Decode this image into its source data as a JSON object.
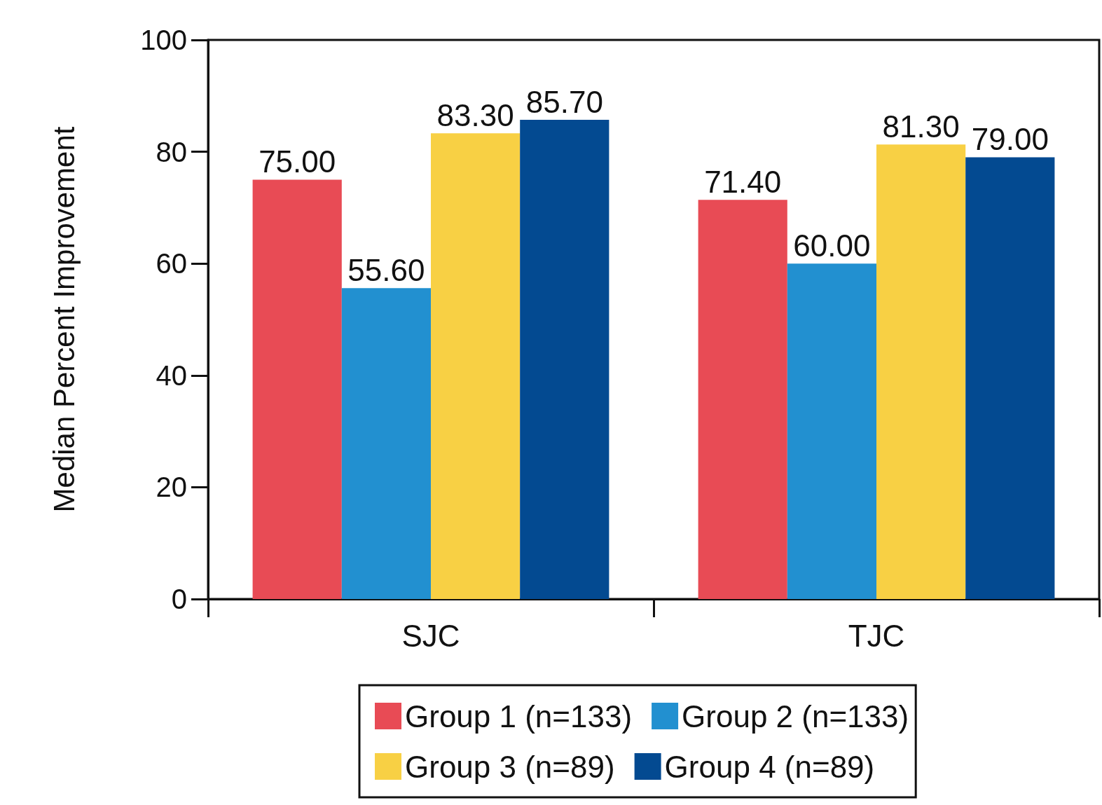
{
  "chart_data": {
    "type": "bar",
    "ylabel": "Median Percent Improvement",
    "categories": [
      "SJC",
      "TJC"
    ],
    "series": [
      {
        "name": "Group 1 (n=133)",
        "color": "#e84b55",
        "values": [
          75.0,
          71.4
        ],
        "value_labels": [
          "75.00",
          "71.40"
        ]
      },
      {
        "name": "Group 2 (n=133)",
        "color": "#2290d0",
        "values": [
          55.6,
          60.0
        ],
        "value_labels": [
          "55.60",
          "60.00"
        ]
      },
      {
        "name": "Group 3 (n=89)",
        "color": "#f8d044",
        "values": [
          83.3,
          81.3
        ],
        "value_labels": [
          "83.30",
          "81.30"
        ]
      },
      {
        "name": "Group 4 (n=89)",
        "color": "#034a91",
        "values": [
          85.7,
          79.0
        ],
        "value_labels": [
          "85.70",
          "79.00"
        ]
      }
    ],
    "ylim": [
      0,
      100
    ],
    "yticks": [
      0,
      20,
      40,
      60,
      80,
      100
    ],
    "grid": false,
    "legend": "bottom"
  }
}
